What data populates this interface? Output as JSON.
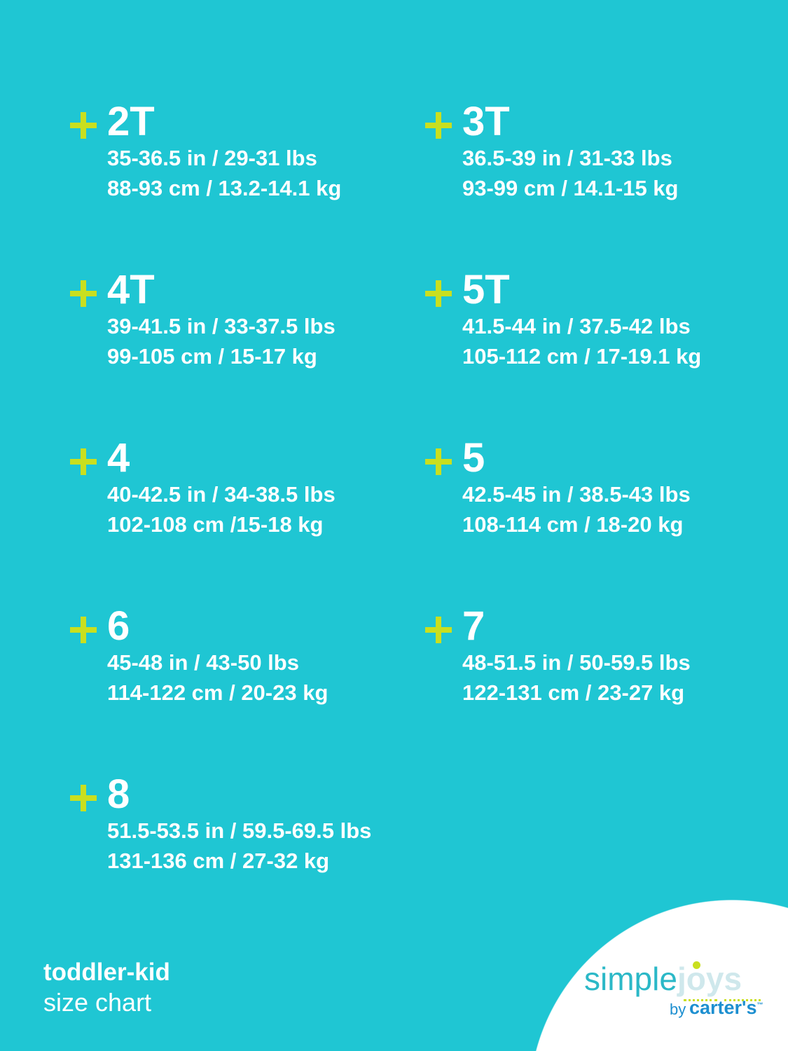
{
  "sizes": [
    {
      "size": "2T",
      "imperial": "35-36.5 in / 29-31 lbs",
      "metric": "88-93 cm / 13.2-14.1 kg"
    },
    {
      "size": "3T",
      "imperial": "36.5-39 in / 31-33 lbs",
      "metric": "93-99 cm / 14.1-15 kg"
    },
    {
      "size": "4T",
      "imperial": "39-41.5 in / 33-37.5 lbs",
      "metric": "99-105 cm / 15-17 kg"
    },
    {
      "size": "5T",
      "imperial": "41.5-44 in / 37.5-42 lbs",
      "metric": "105-112 cm / 17-19.1 kg"
    },
    {
      "size": "4",
      "imperial": "40-42.5 in / 34-38.5 lbs",
      "metric": "102-108 cm /15-18 kg"
    },
    {
      "size": "5",
      "imperial": "42.5-45 in / 38.5-43 lbs",
      "metric": "108-114 cm / 18-20 kg"
    },
    {
      "size": "6",
      "imperial": "45-48 in / 43-50 lbs",
      "metric": "114-122 cm / 20-23 kg"
    },
    {
      "size": "7",
      "imperial": "48-51.5 in / 50-59.5 lbs",
      "metric": "122-131 cm / 23-27 kg"
    },
    {
      "size": "8",
      "imperial": "51.5-53.5 in / 59.5-69.5 lbs",
      "metric": "131-136 cm / 27-32 kg"
    }
  ],
  "footer": {
    "title": "toddler-kid",
    "subtitle": "size chart"
  },
  "logo": {
    "simple": "simple",
    "joys": "joys",
    "by": "by",
    "brand": "carter's",
    "tm": "™"
  },
  "colors": {
    "background": "#1fc6d3",
    "accent": "#c9df1f",
    "text": "#ffffff",
    "logo_teal": "#2bb8c7",
    "logo_blue": "#1d8fd0"
  },
  "icons": {
    "bullet": "plus-icon"
  }
}
